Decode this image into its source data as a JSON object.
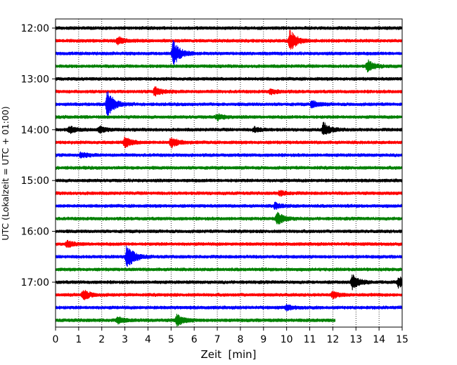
{
  "chart_data": {
    "type": "line",
    "title": "",
    "xlabel": "Zeit  [min]",
    "ylabel": "UTC (Lokalzeit = UTC + 01:00)",
    "xlim": [
      0,
      15
    ],
    "x_ticks": [
      0,
      1,
      2,
      3,
      4,
      5,
      6,
      7,
      8,
      9,
      10,
      11,
      12,
      13,
      14,
      15
    ],
    "x_tick_labels": [
      "0",
      "1",
      "2",
      "3",
      "4",
      "5",
      "6",
      "7",
      "8",
      "9",
      "10",
      "11",
      "12",
      "13",
      "14",
      "15"
    ],
    "y_tick_labels": [
      "12:00",
      "13:00",
      "14:00",
      "15:00",
      "16:00",
      "17:00"
    ],
    "grid": "vertical dotted",
    "trace_interval_minutes": 15,
    "start": "12:00",
    "series_colors": [
      "#000000",
      "#ff0000",
      "#0000ff",
      "#008000"
    ],
    "traces": [
      {
        "start": "12:00",
        "color": "#000000",
        "events": [],
        "end_min": 15
      },
      {
        "start": "12:15",
        "color": "#ff0000",
        "events": [
          {
            "t": 2.7,
            "amp": 0.6
          },
          {
            "t": 10.15,
            "amp": 1.9
          }
        ],
        "end_min": 15
      },
      {
        "start": "12:30",
        "color": "#0000ff",
        "events": [
          {
            "t": 5.1,
            "amp": 2.3
          }
        ],
        "end_min": 15
      },
      {
        "start": "12:45",
        "color": "#008000",
        "events": [
          {
            "t": 13.5,
            "amp": 1.0
          }
        ],
        "end_min": 15
      },
      {
        "start": "13:00",
        "color": "#000000",
        "events": [],
        "end_min": 15
      },
      {
        "start": "13:15",
        "color": "#ff0000",
        "events": [
          {
            "t": 4.3,
            "amp": 0.8
          },
          {
            "t": 9.3,
            "amp": 0.4
          }
        ],
        "end_min": 15
      },
      {
        "start": "13:30",
        "color": "#0000ff",
        "events": [
          {
            "t": 2.25,
            "amp": 2.4
          },
          {
            "t": 11.1,
            "amp": 0.6
          }
        ],
        "end_min": 15
      },
      {
        "start": "13:45",
        "color": "#008000",
        "events": [
          {
            "t": 7.0,
            "amp": 0.5
          }
        ],
        "end_min": 15
      },
      {
        "start": "14:00",
        "color": "#000000",
        "events": [
          {
            "t": 0.6,
            "amp": 0.6
          },
          {
            "t": 1.9,
            "amp": 0.5
          },
          {
            "t": 8.6,
            "amp": 0.4
          },
          {
            "t": 11.6,
            "amp": 1.2
          }
        ],
        "end_min": 15
      },
      {
        "start": "14:15",
        "color": "#ff0000",
        "events": [
          {
            "t": 3.0,
            "amp": 0.9
          },
          {
            "t": 5.0,
            "amp": 0.9
          }
        ],
        "end_min": 15
      },
      {
        "start": "14:30",
        "color": "#0000ff",
        "events": [
          {
            "t": 1.1,
            "amp": 0.4
          }
        ],
        "end_min": 15
      },
      {
        "start": "14:45",
        "color": "#008000",
        "events": [],
        "end_min": 15
      },
      {
        "start": "15:00",
        "color": "#000000",
        "events": [],
        "end_min": 15
      },
      {
        "start": "15:15",
        "color": "#ff0000",
        "events": [
          {
            "t": 9.7,
            "amp": 0.4
          }
        ],
        "end_min": 15
      },
      {
        "start": "15:30",
        "color": "#0000ff",
        "events": [
          {
            "t": 9.5,
            "amp": 0.5
          }
        ],
        "end_min": 15
      },
      {
        "start": "15:45",
        "color": "#008000",
        "events": [
          {
            "t": 9.6,
            "amp": 1.1
          }
        ],
        "end_min": 15
      },
      {
        "start": "16:00",
        "color": "#000000",
        "events": [],
        "end_min": 15
      },
      {
        "start": "16:15",
        "color": "#ff0000",
        "events": [
          {
            "t": 0.5,
            "amp": 0.5
          }
        ],
        "end_min": 15
      },
      {
        "start": "16:30",
        "color": "#0000ff",
        "events": [
          {
            "t": 3.1,
            "amp": 2.3
          }
        ],
        "end_min": 15
      },
      {
        "start": "16:45",
        "color": "#008000",
        "events": [],
        "end_min": 15
      },
      {
        "start": "17:00",
        "color": "#000000",
        "events": [
          {
            "t": 12.85,
            "amp": 1.4
          },
          {
            "t": 14.85,
            "amp": 0.9
          }
        ],
        "end_min": 15
      },
      {
        "start": "17:15",
        "color": "#ff0000",
        "events": [
          {
            "t": 1.2,
            "amp": 0.9
          },
          {
            "t": 12.0,
            "amp": 0.5
          }
        ],
        "end_min": 15
      },
      {
        "start": "17:30",
        "color": "#0000ff",
        "events": [
          {
            "t": 10.0,
            "amp": 0.4
          }
        ],
        "end_min": 15
      },
      {
        "start": "17:45",
        "color": "#008000",
        "events": [
          {
            "t": 2.7,
            "amp": 0.5
          },
          {
            "t": 5.25,
            "amp": 1.0
          }
        ],
        "end_min": 12.1
      }
    ]
  }
}
